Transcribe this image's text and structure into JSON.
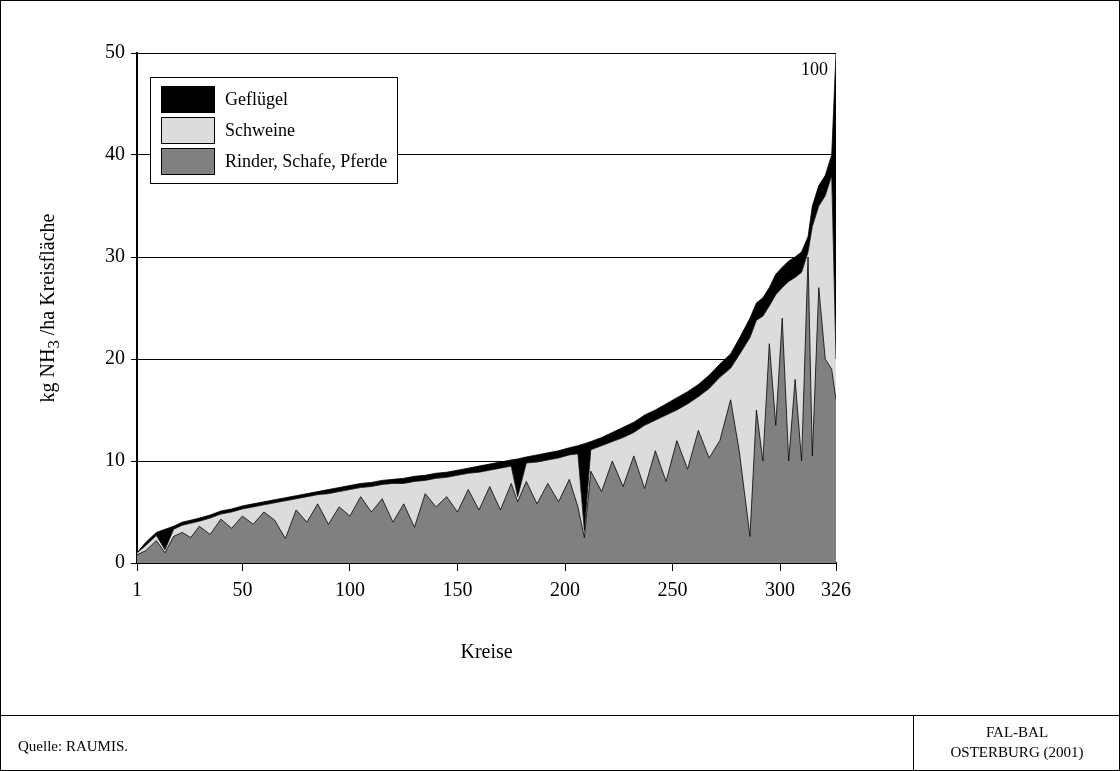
{
  "chart_data": {
    "type": "area",
    "stacked": true,
    "xlabel": "Kreise",
    "ylabel": "kg NH$_{3}$ /ha Kreisfläche",
    "x": [
      1,
      5,
      10,
      14,
      18,
      22,
      26,
      30,
      35,
      40,
      45,
      50,
      55,
      60,
      65,
      70,
      75,
      80,
      85,
      90,
      95,
      100,
      105,
      110,
      115,
      120,
      125,
      130,
      135,
      140,
      145,
      150,
      155,
      160,
      165,
      170,
      175,
      178,
      182,
      187,
      192,
      197,
      202,
      206,
      209,
      212,
      217,
      222,
      227,
      232,
      237,
      242,
      247,
      252,
      257,
      262,
      267,
      272,
      277,
      281,
      286,
      289,
      292,
      295,
      298,
      301,
      304,
      307,
      310,
      313,
      315,
      318,
      321,
      324,
      326
    ],
    "series": [
      {
        "name": "Rinder, Schafe, Pferde",
        "color": "#808080",
        "values": [
          0.8,
          1.2,
          2.2,
          1.0,
          2.6,
          3.0,
          2.5,
          3.6,
          2.8,
          4.3,
          3.4,
          4.6,
          3.8,
          5.0,
          4.2,
          2.4,
          5.2,
          4.0,
          5.8,
          3.8,
          5.5,
          4.6,
          6.5,
          5.0,
          6.3,
          4.0,
          5.8,
          3.5,
          6.8,
          5.5,
          6.5,
          5.0,
          7.2,
          5.2,
          7.5,
          5.2,
          7.8,
          6.0,
          8.0,
          5.8,
          7.8,
          6.0,
          8.2,
          5.5,
          2.5,
          9.0,
          7.0,
          10.0,
          7.5,
          10.5,
          7.3,
          11.0,
          8.0,
          12.0,
          9.2,
          13.0,
          10.3,
          12.0,
          16.0,
          11.0,
          2.6,
          15.0,
          10.0,
          21.5,
          13.5,
          24.0,
          10.0,
          18.0,
          10.0,
          30.0,
          10.5,
          27.0,
          20.0,
          19.0,
          16.0
        ]
      },
      {
        "name": "Schweine",
        "color": "#dcdcdc",
        "values": [
          0.2,
          0.5,
          0.5,
          0.3,
          0.7,
          0.7,
          1.4,
          0.5,
          1.6,
          0.5,
          1.6,
          0.7,
          1.7,
          0.7,
          1.7,
          3.7,
          1.1,
          2.5,
          0.9,
          3.0,
          1.5,
          2.6,
          0.9,
          2.5,
          1.4,
          3.8,
          2.0,
          4.5,
          1.3,
          2.8,
          1.9,
          3.6,
          1.6,
          3.7,
          1.6,
          4.1,
          1.7,
          0.5,
          1.8,
          4.1,
          2.3,
          4.3,
          2.4,
          5.2,
          0.7,
          2.1,
          4.5,
          1.9,
          4.8,
          2.3,
          6.2,
          3.0,
          6.5,
          3.0,
          6.4,
          3.3,
          6.8,
          6.2,
          3.1,
          9.4,
          19.5,
          8.8,
          14.2,
          3.7,
          12.8,
          3.0,
          17.6,
          10.0,
          18.5,
          0.5,
          22.5,
          8.0,
          16.0,
          19.0,
          4.0
        ]
      },
      {
        "name": "Geflügel",
        "color": "#000000",
        "values": [
          0,
          0.3,
          0.3,
          2.0,
          0.3,
          0.3,
          0.3,
          0.3,
          0.3,
          0.3,
          0.3,
          0.3,
          0.3,
          0.3,
          0.3,
          0.3,
          0.3,
          0.3,
          0.3,
          0.4,
          0.4,
          0.4,
          0.4,
          0.4,
          0.4,
          0.4,
          0.5,
          0.5,
          0.5,
          0.5,
          0.5,
          0.5,
          0.5,
          0.6,
          0.6,
          0.6,
          0.6,
          3.7,
          0.6,
          0.7,
          0.7,
          0.7,
          0.7,
          0.8,
          8.5,
          0.8,
          0.8,
          0.9,
          1.0,
          1.0,
          1.0,
          1.0,
          1.1,
          1.2,
          1.2,
          1.2,
          1.3,
          1.3,
          1.4,
          1.6,
          1.9,
          1.7,
          1.8,
          1.8,
          2.0,
          2.0,
          2.0,
          2.0,
          2.0,
          1.5,
          2.0,
          2.0,
          2.0,
          2.0,
          30
        ]
      }
    ],
    "xlim": [
      1,
      326
    ],
    "xticks": [
      1,
      50,
      100,
      150,
      200,
      250,
      300,
      326
    ],
    "ylim": [
      0,
      50
    ],
    "yticks": [
      0,
      10,
      20,
      30,
      40,
      50
    ],
    "grid": "y",
    "legend": "top left",
    "annotations": [
      {
        "text": "100",
        "x": 326,
        "y": 50
      },
      "Quelle: RAUMIS.",
      "FAL-BAL\nOSTERBURG (2001)"
    ]
  }
}
